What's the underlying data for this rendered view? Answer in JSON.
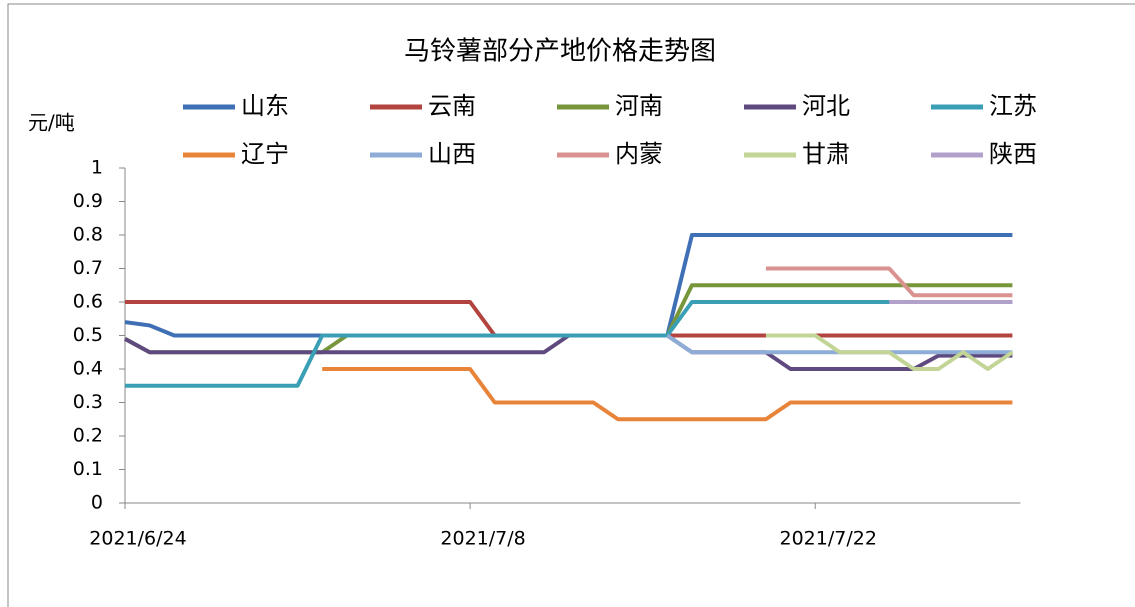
{
  "chart_data": {
    "type": "line",
    "title": "马铃薯部分产地价格走势图",
    "y_label": "元/吨",
    "categories": [
      "2021/6/24",
      null,
      null,
      null,
      null,
      null,
      null,
      null,
      null,
      null,
      null,
      null,
      null,
      null,
      "2021/7/8",
      null,
      null,
      null,
      null,
      null,
      null,
      null,
      null,
      null,
      null,
      null,
      null,
      null,
      "2021/7/22",
      null,
      null,
      null,
      null,
      null,
      null,
      null,
      null
    ],
    "ylim": [
      0,
      1
    ],
    "yticks": [
      0,
      0.1,
      0.2,
      0.3,
      0.4,
      0.5,
      0.6,
      0.7,
      0.8,
      0.9,
      1
    ],
    "series": [
      {
        "name": "山东",
        "color": "#3f6fb4",
        "values": [
          0.54,
          0.53,
          0.5,
          0.5,
          0.5,
          0.5,
          0.5,
          0.5,
          0.5,
          0.5,
          0.5,
          0.5,
          0.5,
          0.5,
          0.5,
          0.5,
          0.5,
          0.5,
          0.5,
          0.5,
          0.5,
          0.5,
          0.5,
          0.8,
          0.8,
          0.8,
          0.8,
          0.8,
          0.8,
          0.8,
          0.8,
          0.8,
          0.8,
          0.8,
          0.8,
          0.8,
          0.8
        ]
      },
      {
        "name": "云南",
        "color": "#b2433f",
        "values": [
          0.6,
          0.6,
          0.6,
          0.6,
          0.6,
          0.6,
          0.6,
          0.6,
          0.6,
          0.6,
          0.6,
          0.6,
          0.6,
          0.6,
          0.6,
          0.5,
          0.5,
          0.5,
          0.5,
          0.5,
          0.5,
          0.5,
          0.5,
          0.5,
          0.5,
          0.5,
          0.5,
          0.5,
          0.5,
          0.5,
          0.5,
          0.5,
          0.5,
          0.5,
          0.5,
          0.5,
          0.5
        ]
      },
      {
        "name": "河南",
        "color": "#77963c",
        "values": [
          0.49,
          0.45,
          0.45,
          0.45,
          0.45,
          0.45,
          0.45,
          0.45,
          0.45,
          0.5,
          0.5,
          0.5,
          0.5,
          0.5,
          0.5,
          0.5,
          0.5,
          0.5,
          0.5,
          0.5,
          0.5,
          0.5,
          0.5,
          0.65,
          0.65,
          0.65,
          0.65,
          0.65,
          0.65,
          0.65,
          0.65,
          0.65,
          0.65,
          0.65,
          0.65,
          0.65,
          0.65
        ]
      },
      {
        "name": "河北",
        "color": "#5f4a80",
        "values": [
          0.49,
          0.45,
          0.45,
          0.45,
          0.45,
          0.45,
          0.45,
          0.45,
          0.45,
          0.45,
          0.45,
          0.45,
          0.45,
          0.45,
          0.45,
          0.45,
          0.45,
          0.45,
          0.5,
          0.5,
          0.5,
          0.5,
          0.5,
          0.45,
          0.45,
          0.45,
          0.45,
          0.4,
          0.4,
          0.4,
          0.4,
          0.4,
          0.4,
          0.44,
          0.44,
          0.44,
          0.44
        ]
      },
      {
        "name": "江苏",
        "color": "#3a9fb4",
        "values": [
          0.35,
          0.35,
          0.35,
          0.35,
          0.35,
          0.35,
          0.35,
          0.35,
          0.5,
          0.5,
          0.5,
          0.5,
          0.5,
          0.5,
          0.5,
          0.5,
          0.5,
          0.5,
          0.5,
          0.5,
          0.5,
          0.5,
          0.5,
          0.6,
          0.6,
          0.6,
          0.6,
          0.6,
          0.6,
          0.6,
          0.6,
          0.6,
          0.6,
          0.6,
          0.6,
          0.6,
          0.6
        ]
      },
      {
        "name": "辽宁",
        "color": "#e8843a",
        "values": [
          null,
          null,
          null,
          null,
          null,
          null,
          null,
          null,
          0.4,
          0.4,
          0.4,
          0.4,
          0.4,
          0.4,
          0.4,
          0.3,
          0.3,
          0.3,
          0.3,
          0.3,
          0.25,
          0.25,
          0.25,
          0.25,
          0.25,
          0.25,
          0.25,
          0.3,
          0.3,
          0.3,
          0.3,
          0.3,
          0.3,
          0.3,
          0.3,
          0.3,
          0.3
        ]
      },
      {
        "name": "山西",
        "color": "#8eacd6",
        "values": [
          null,
          null,
          null,
          null,
          null,
          null,
          null,
          null,
          null,
          null,
          null,
          null,
          null,
          null,
          null,
          null,
          null,
          null,
          null,
          null,
          null,
          null,
          0.5,
          0.45,
          0.45,
          0.45,
          0.45,
          0.45,
          0.45,
          0.45,
          0.45,
          0.45,
          0.45,
          0.45,
          0.45,
          0.45,
          0.45
        ]
      },
      {
        "name": "内蒙",
        "color": "#d99290",
        "values": [
          null,
          null,
          null,
          null,
          null,
          null,
          null,
          null,
          null,
          null,
          null,
          null,
          null,
          null,
          null,
          null,
          null,
          null,
          null,
          null,
          null,
          null,
          null,
          null,
          null,
          null,
          0.7,
          0.7,
          0.7,
          0.7,
          0.7,
          0.7,
          0.62,
          0.62,
          0.62,
          0.62,
          0.62
        ]
      },
      {
        "name": "甘肃",
        "color": "#c2d597",
        "values": [
          null,
          null,
          null,
          null,
          null,
          null,
          null,
          null,
          null,
          null,
          null,
          null,
          null,
          null,
          null,
          null,
          null,
          null,
          null,
          null,
          null,
          null,
          null,
          null,
          null,
          null,
          0.5,
          0.5,
          0.5,
          0.45,
          0.45,
          0.45,
          0.4,
          0.4,
          0.45,
          0.4,
          0.45
        ]
      },
      {
        "name": "陕西",
        "color": "#b1a0c9",
        "values": [
          null,
          null,
          null,
          null,
          null,
          null,
          null,
          null,
          null,
          null,
          null,
          null,
          null,
          null,
          null,
          null,
          null,
          null,
          null,
          null,
          null,
          null,
          null,
          null,
          null,
          null,
          null,
          null,
          null,
          null,
          null,
          0.6,
          0.6,
          0.6,
          0.6,
          0.6,
          0.6
        ]
      }
    ]
  }
}
